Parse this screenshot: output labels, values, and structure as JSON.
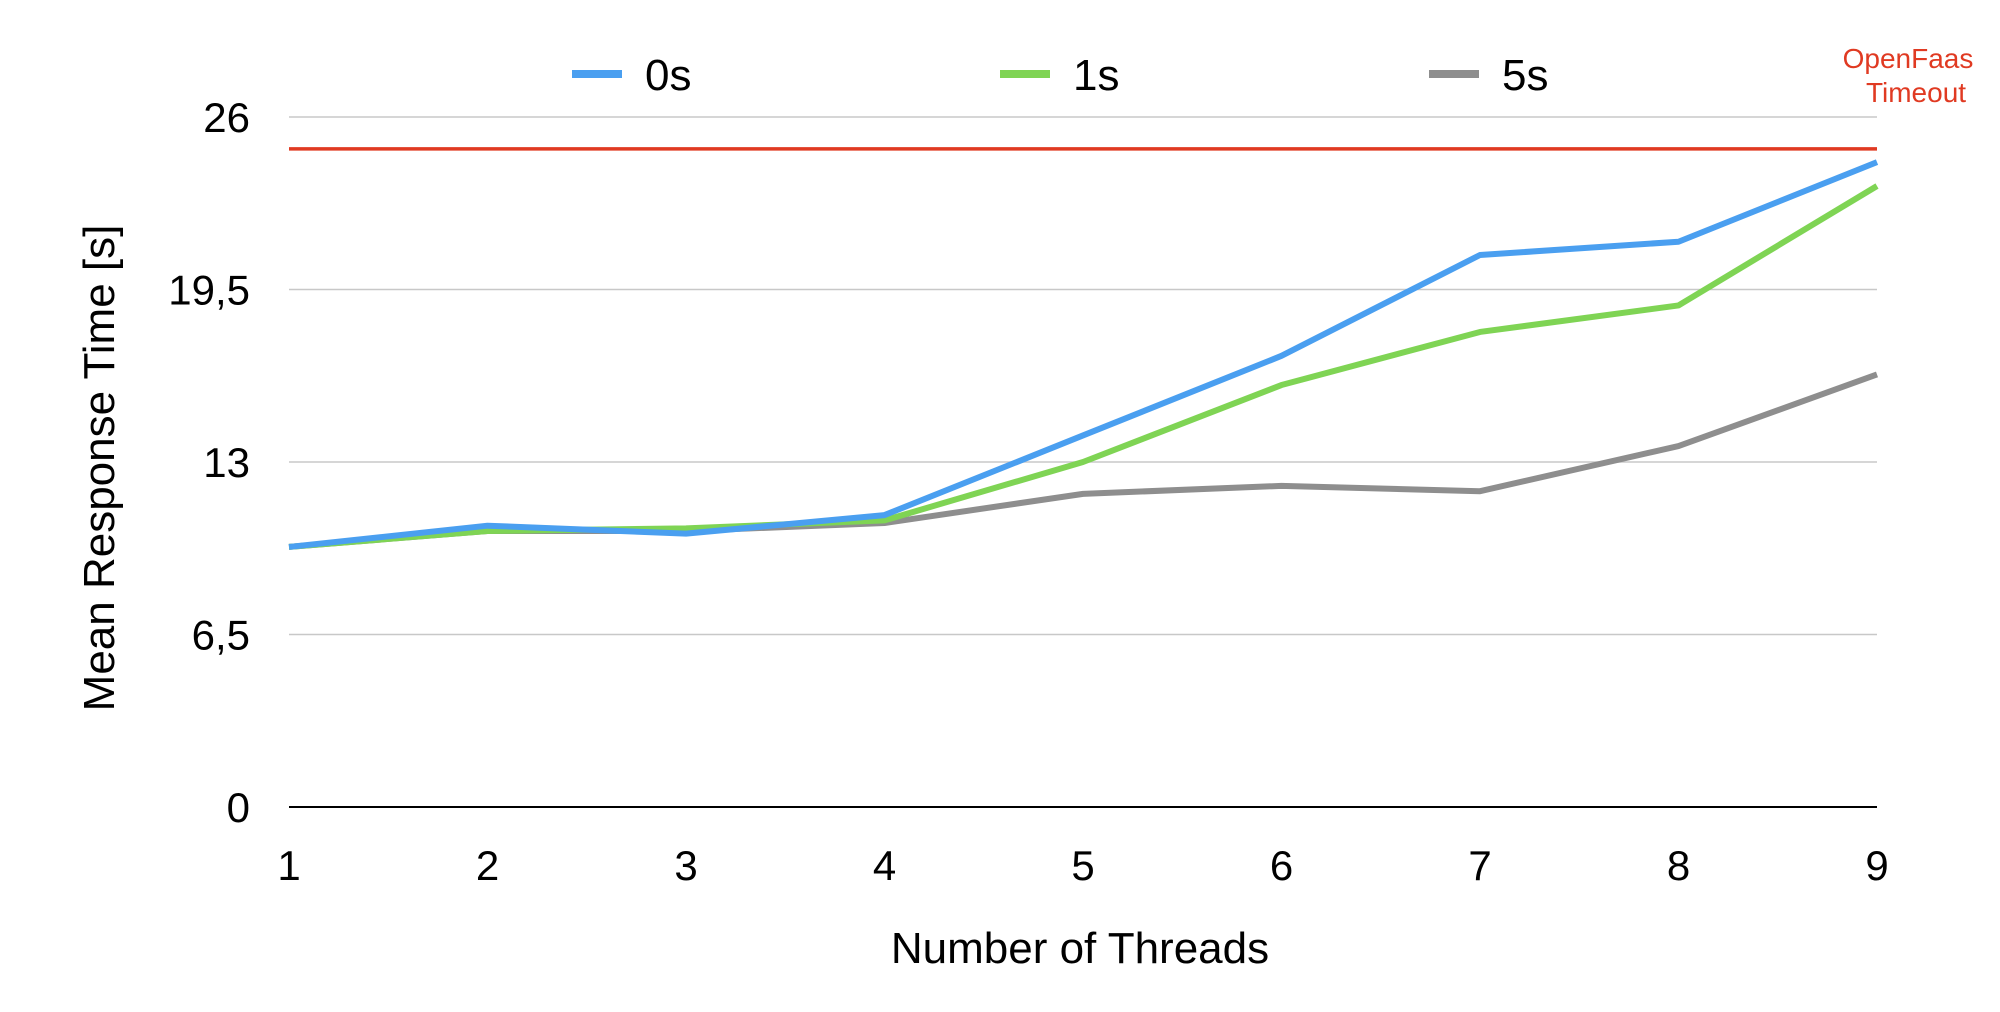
{
  "chart_data": {
    "type": "line",
    "xlabel": "Number of Threads",
    "ylabel": "Mean Response Time [s]",
    "x": [
      1,
      2,
      3,
      4,
      5,
      6,
      7,
      8,
      9
    ],
    "x_tick_labels": [
      "1",
      "2",
      "3",
      "4",
      "5",
      "6",
      "7",
      "8",
      "9"
    ],
    "ylim": [
      0,
      26
    ],
    "y_ticks": [
      0,
      6.5,
      13,
      19.5,
      26
    ],
    "y_tick_labels": [
      "0",
      "6,5",
      "13",
      "19,5",
      "26"
    ],
    "grid": "horizontal",
    "legend_position": "top",
    "series": [
      {
        "name": "0s",
        "color": "#4a9ff0",
        "values": [
          9.8,
          10.6,
          10.3,
          11.0,
          14.0,
          17.0,
          20.8,
          21.3,
          24.3
        ]
      },
      {
        "name": "1s",
        "color": "#7fd454",
        "values": [
          9.8,
          10.4,
          10.5,
          10.8,
          13.0,
          15.9,
          17.9,
          18.9,
          23.4
        ]
      },
      {
        "name": "5s",
        "color": "#8e8e8e",
        "values": [
          9.8,
          10.4,
          10.4,
          10.7,
          11.8,
          12.1,
          11.9,
          13.6,
          16.3
        ]
      }
    ],
    "threshold": {
      "label_line1": "OpenFaas",
      "label_line2": "Timeout",
      "value": 24.8,
      "color": "#e03a22"
    },
    "grid_color": "#c8c8c8",
    "axis_color": "#000000"
  }
}
